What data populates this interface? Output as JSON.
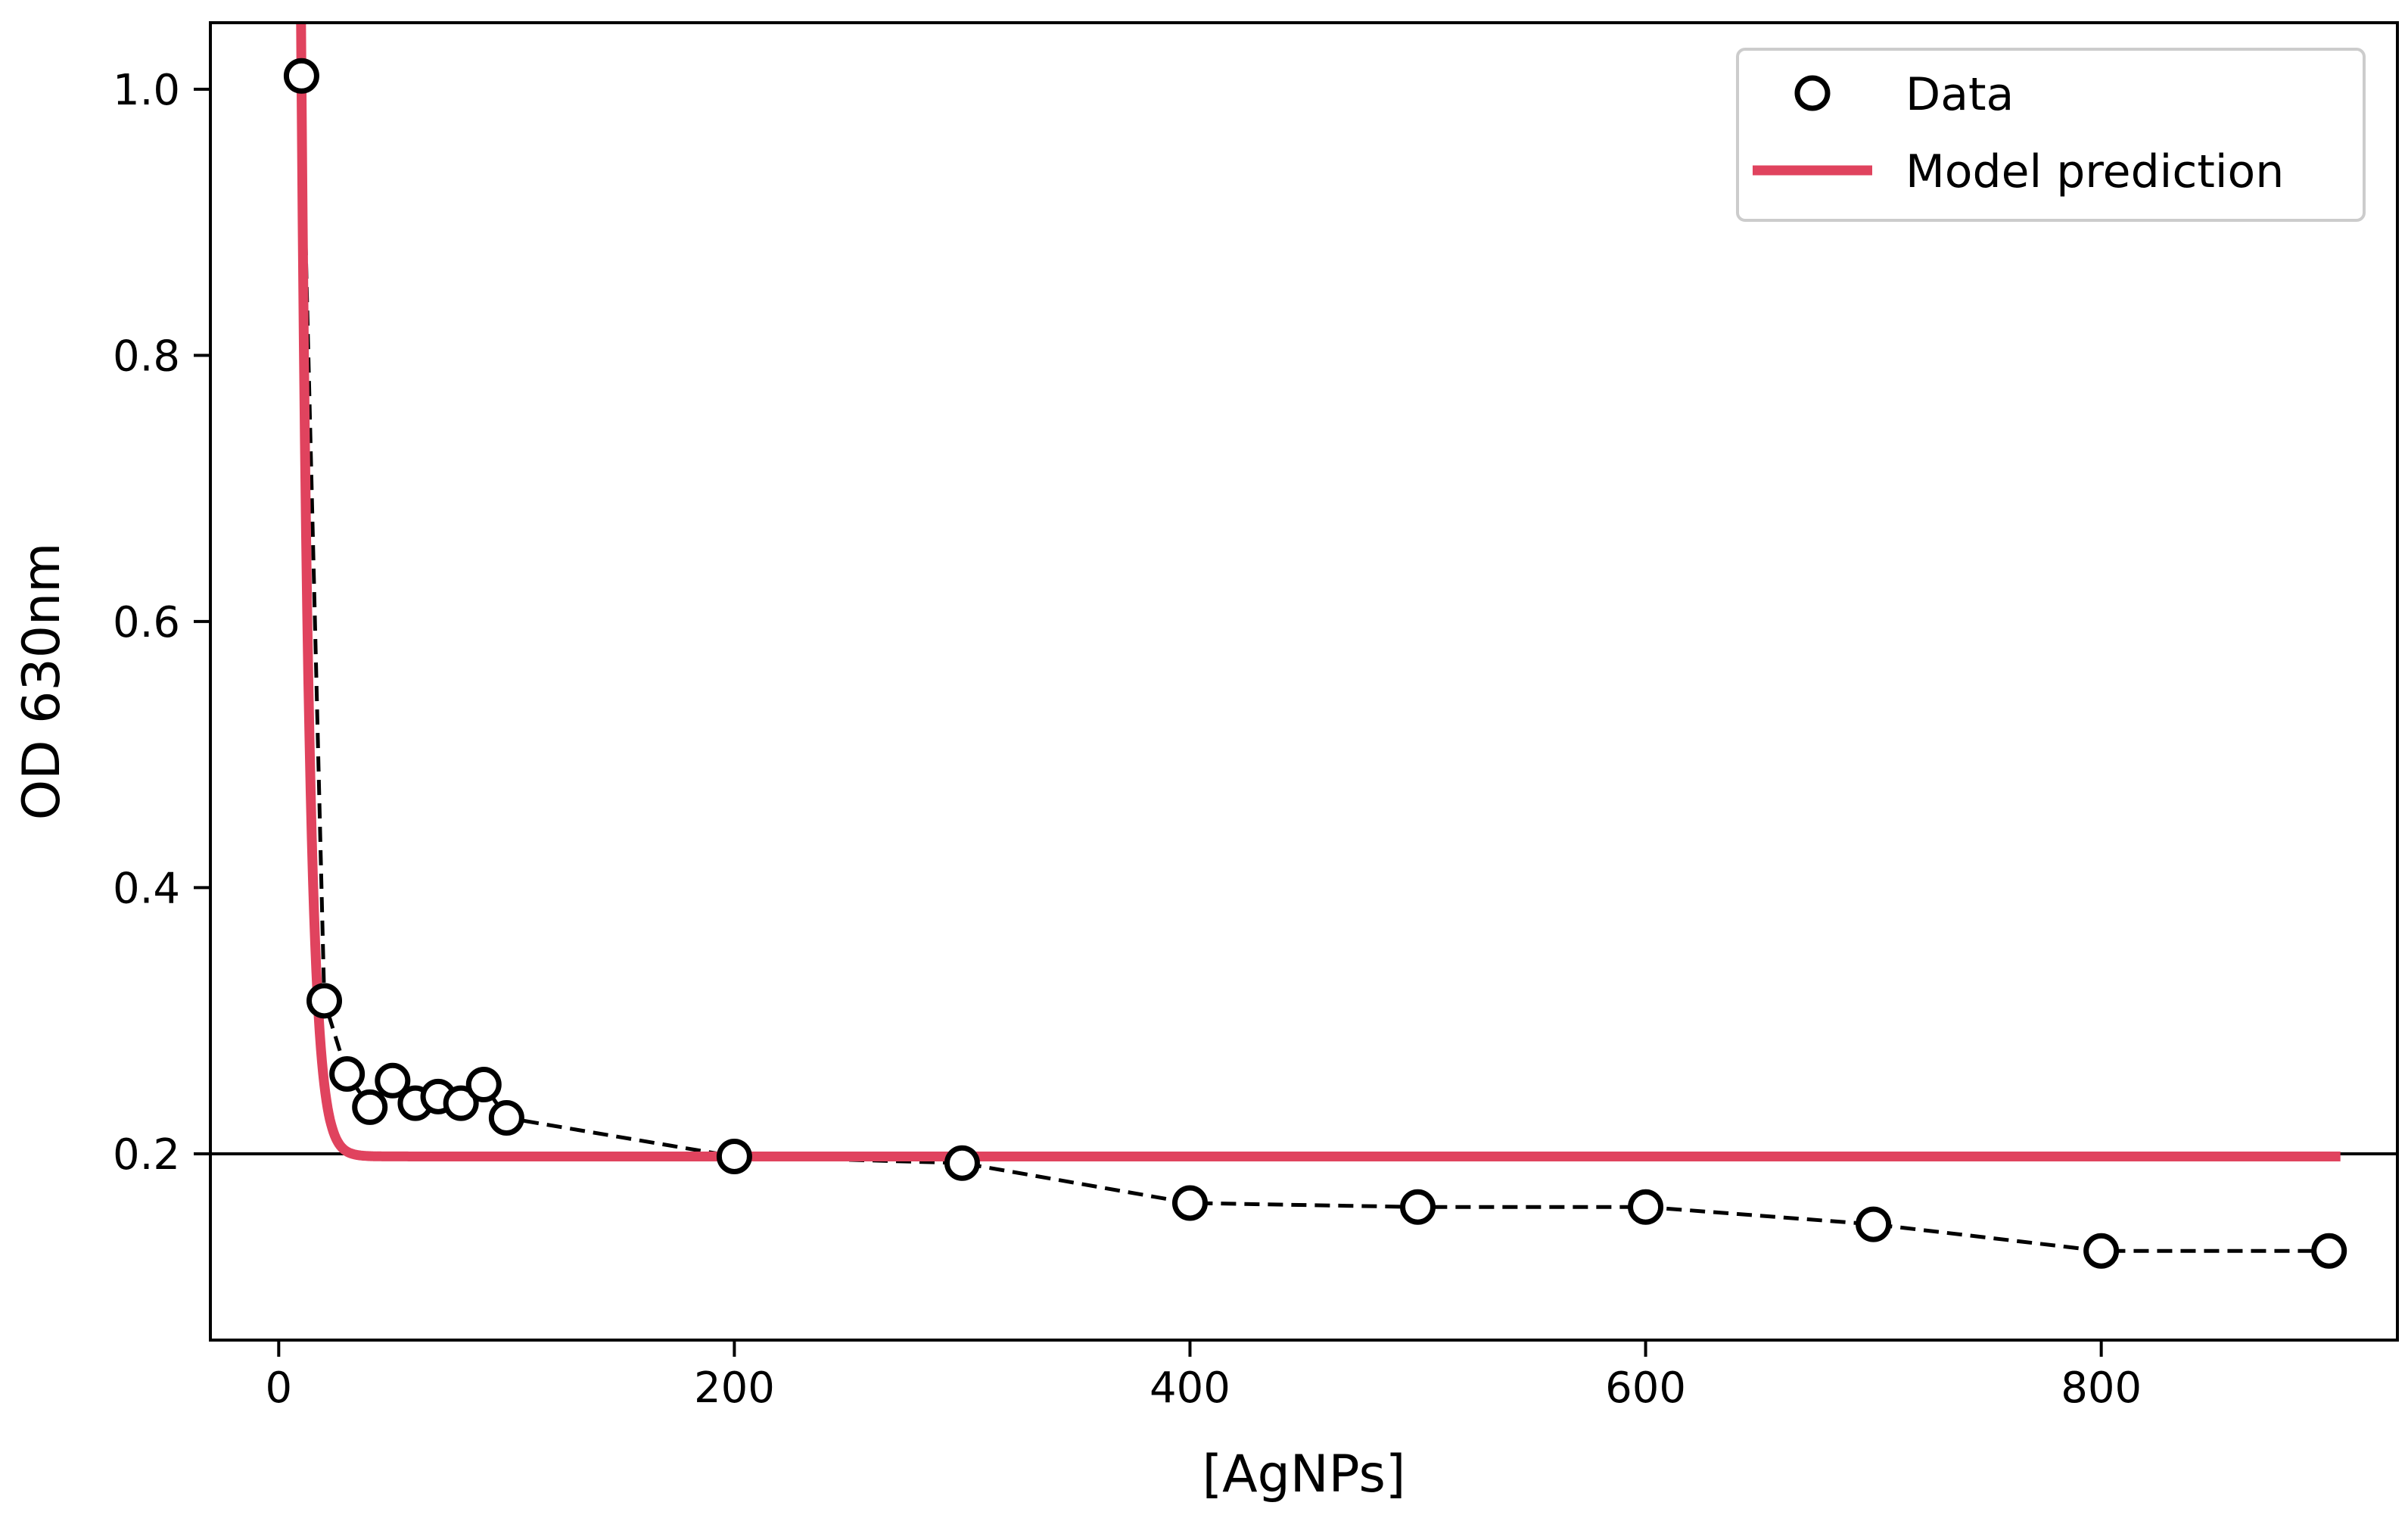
{
  "chart_data": {
    "type": "scatter",
    "title": "",
    "xlabel": "[AgNPs]",
    "ylabel": "OD 630nm",
    "xlim": [
      -30,
      930
    ],
    "ylim": [
      0.06,
      1.05
    ],
    "xticks": [
      0,
      200,
      400,
      600,
      800
    ],
    "yticks": [
      0.2,
      0.4,
      0.6,
      0.8,
      1.0
    ],
    "xtick_labels": [
      "0",
      "200",
      "400",
      "600",
      "800"
    ],
    "ytick_labels": [
      "0.2",
      "0.4",
      "0.6",
      "0.8",
      "1.0"
    ],
    "grid": false,
    "legend_position": "top-right",
    "reference_line": {
      "y": 0.2,
      "color": "#000000"
    },
    "series": [
      {
        "name": "Data",
        "style": "markers-dashed",
        "color": "#000000",
        "x": [
          10,
          20,
          30,
          40,
          50,
          60,
          70,
          80,
          90,
          100,
          200,
          300,
          400,
          500,
          600,
          700,
          800,
          900
        ],
        "y": [
          1.01,
          0.315,
          0.26,
          0.235,
          0.255,
          0.238,
          0.243,
          0.238,
          0.252,
          0.227,
          0.198,
          0.193,
          0.163,
          0.16,
          0.16,
          0.147,
          0.127,
          0.127
        ]
      },
      {
        "name": "Model prediction",
        "style": "line",
        "color": "#e0435e",
        "model": {
          "baseline": 0.198,
          "amplitude": 12.0,
          "rate": 0.27,
          "x_start": 9.5,
          "x_end": 905
        }
      }
    ]
  }
}
